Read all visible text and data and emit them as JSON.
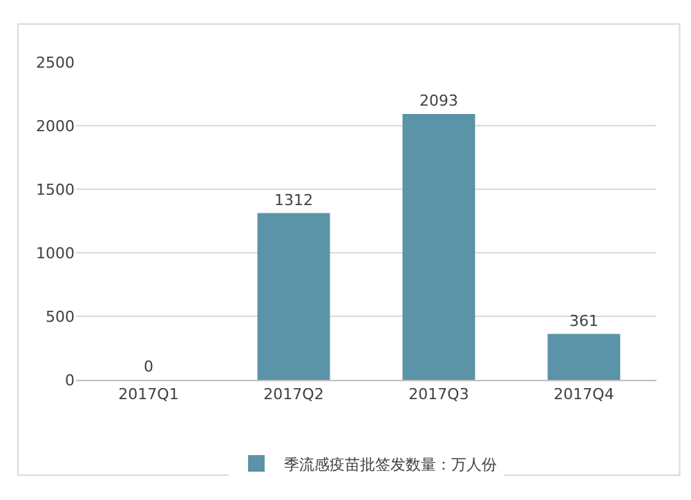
{
  "chart_data": {
    "type": "bar",
    "categories": [
      "2017Q1",
      "2017Q2",
      "2017Q3",
      "2017Q4"
    ],
    "series": [
      {
        "name": "季流感疫苗批签发数量：万人份",
        "color": "#5b93a8",
        "values": [
          0,
          1312,
          2093,
          361
        ]
      }
    ],
    "ylim": [
      0,
      2500
    ],
    "yticks": [
      0,
      500,
      1000,
      1500,
      2000,
      2500
    ],
    "grid": "y",
    "legend": "bottom",
    "data_labels": true
  }
}
